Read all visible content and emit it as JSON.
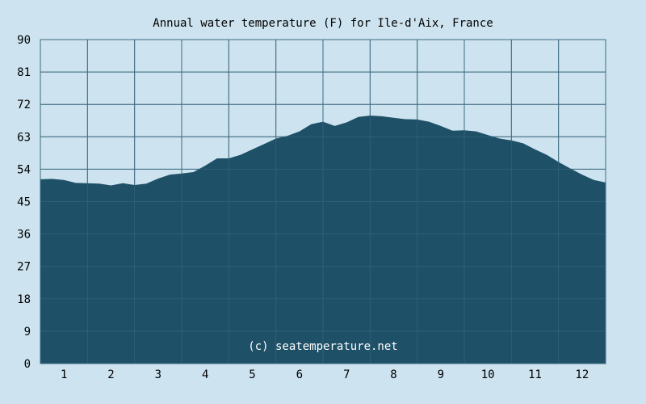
{
  "colors": {
    "background": "#cde3ef",
    "area_fill": "#1e5068",
    "grid": "#3f6b80",
    "axis": "#000000"
  },
  "chart_data": {
    "type": "area",
    "title": "Annual water temperature (F) for Ile-d'Aix, France",
    "xlabel": "",
    "ylabel": "",
    "ylim": [
      0,
      90
    ],
    "xlim": [
      0.5,
      12.5
    ],
    "y_ticks": [
      "0",
      "9",
      "18",
      "27",
      "36",
      "45",
      "54",
      "63",
      "72",
      "81",
      "90"
    ],
    "x_ticks": [
      "1",
      "2",
      "3",
      "4",
      "5",
      "6",
      "7",
      "8",
      "9",
      "10",
      "11",
      "12"
    ],
    "grid": true,
    "watermark": "(c) seatemperature.net",
    "series": [
      {
        "x": [
          0.5,
          0.75,
          1.0,
          1.25,
          1.5,
          1.75,
          2.0,
          2.25,
          2.5,
          2.75,
          3.0,
          3.25,
          3.5,
          3.75,
          4.0,
          4.25,
          4.5,
          4.75,
          5.0,
          5.25,
          5.5,
          5.75,
          6.0,
          6.25,
          6.5,
          6.75,
          7.0,
          7.25,
          7.5,
          7.75,
          8.0,
          8.25,
          8.5,
          8.75,
          9.0,
          9.25,
          9.5,
          9.75,
          10.0,
          10.25,
          10.5,
          10.75,
          11.0,
          11.25,
          11.5,
          11.75,
          12.0,
          12.25,
          12.5
        ],
        "values": [
          51.2,
          51.3,
          51.0,
          50.2,
          50.1,
          50.0,
          49.5,
          50.1,
          49.6,
          50.0,
          51.4,
          52.5,
          52.8,
          53.2,
          55.0,
          57.0,
          57.0,
          58.0,
          59.5,
          61.0,
          62.5,
          63.3,
          64.5,
          66.5,
          67.2,
          66.0,
          67.0,
          68.5,
          68.9,
          68.7,
          68.3,
          67.9,
          67.8,
          67.2,
          66.0,
          64.7,
          64.8,
          64.5,
          63.5,
          62.5,
          62.0,
          61.2,
          59.5,
          58.0,
          56.0,
          54.2,
          52.5,
          51.0,
          50.3
        ]
      }
    ]
  }
}
